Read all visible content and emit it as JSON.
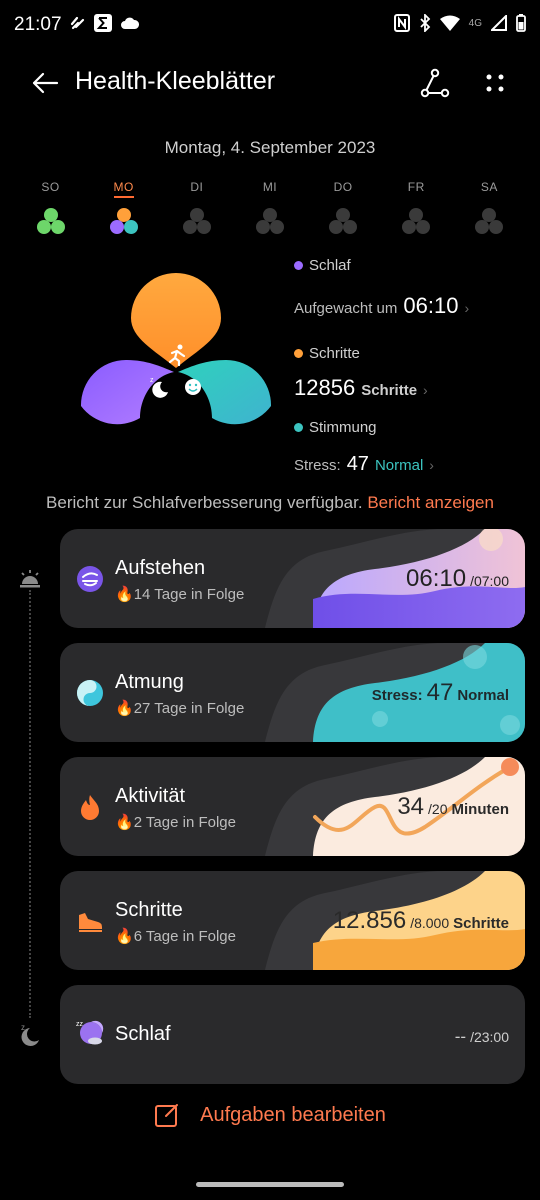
{
  "status": {
    "time": "21:07",
    "network": "4G"
  },
  "header": {
    "title": "Health-Kleeblätter"
  },
  "date": "Montag, 4. September 2023",
  "days": [
    {
      "label": "SO",
      "state": "filled"
    },
    {
      "label": "MO",
      "state": "active"
    },
    {
      "label": "DI",
      "state": "empty"
    },
    {
      "label": "MI",
      "state": "empty"
    },
    {
      "label": "DO",
      "state": "empty"
    },
    {
      "label": "FR",
      "state": "empty"
    },
    {
      "label": "SA",
      "state": "empty"
    }
  ],
  "stats": {
    "sleep_label": "Schlaf",
    "sleep_text": "Aufgewacht um",
    "sleep_value": "06:10",
    "steps_label": "Schritte",
    "steps_value": "12856",
    "steps_unit": "Schritte",
    "mood_label": "Stimmung",
    "stress_text": "Stress:",
    "stress_value": "47",
    "stress_status": "Normal"
  },
  "report": {
    "text": "Bericht zur Schlafverbesserung verfügbar.",
    "link": "Bericht anzeigen"
  },
  "cards": [
    {
      "title": "Aufstehen",
      "subtitle": "14 Tage in Folge",
      "value": "06:10",
      "target": "/07:00",
      "unit": ""
    },
    {
      "title": "Atmung",
      "subtitle": "27 Tage in Folge",
      "prefix": "Stress:",
      "value": "47",
      "unit": "Normal"
    },
    {
      "title": "Aktivität",
      "subtitle": "2 Tage in Folge",
      "value": "34",
      "target": "/20",
      "unit": "Minuten"
    },
    {
      "title": "Schritte",
      "subtitle": "6 Tage in Folge",
      "value": "12.856",
      "target": "/8.000",
      "unit": "Schritte"
    },
    {
      "title": "Schlaf",
      "value": "--",
      "target": "/23:00"
    }
  ],
  "edit_label": "Aufgaben bearbeiten",
  "colors": {
    "sleep": "#9b6bff",
    "steps": "#ffa03a",
    "mood": "#3cc4c0",
    "accent": "#ff7a4f",
    "card": "#2a2a2c"
  }
}
